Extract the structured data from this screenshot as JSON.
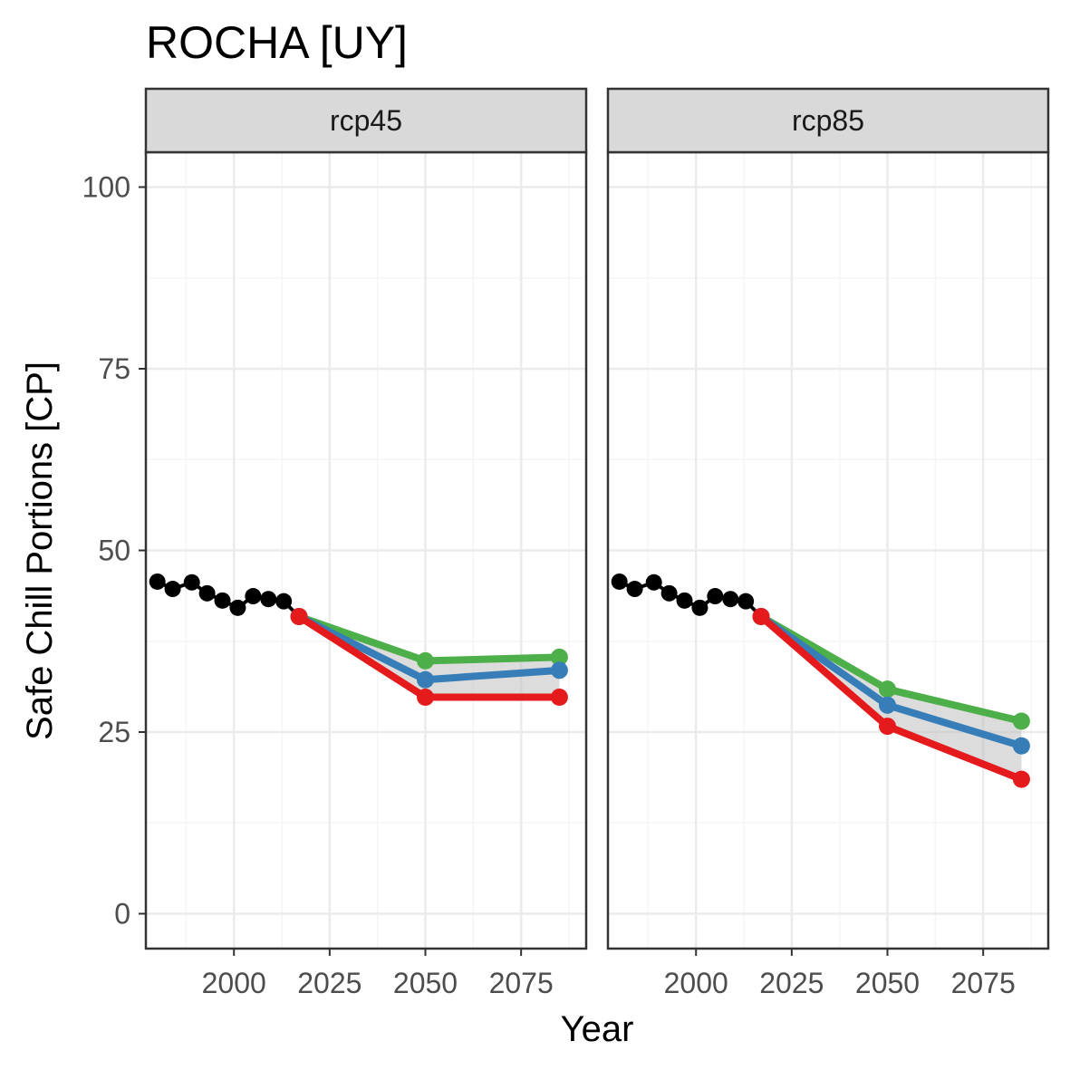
{
  "chart_data": {
    "type": "line",
    "title": "ROCHA [UY]",
    "xlabel": "Year",
    "ylabel": "Safe Chill Portions [CP]",
    "xlim": [
      1977,
      2092
    ],
    "ylim": [
      -4.8,
      104.8
    ],
    "x_ticks": [
      2000,
      2025,
      2050,
      2075
    ],
    "y_ticks": [
      0,
      25,
      50,
      75,
      100
    ],
    "grid": true,
    "legend": "none",
    "colors": {
      "historic": "#000000",
      "high": "#4daf4a",
      "mid": "#377eb8",
      "low": "#e41a1c",
      "ribbon": "#bfbfbf",
      "strip_fill": "#d9d9d9",
      "panel_border": "#333333",
      "grid_major": "#ebebeb",
      "grid_minor": "#f5f5f5"
    },
    "panels": [
      {
        "label": "rcp45",
        "historic": {
          "x": [
            1980,
            1984,
            1989,
            1993,
            1997,
            2001,
            2005,
            2009,
            2013,
            2017
          ],
          "y": [
            45.7,
            44.7,
            45.6,
            44.1,
            43.1,
            42.1,
            43.7,
            43.3,
            43.0,
            40.9
          ]
        },
        "series": [
          {
            "x": [
              2017,
              2050,
              2085
            ],
            "y": [
              40.9,
              34.8,
              35.3
            ]
          },
          {
            "x": [
              2017,
              2050,
              2085
            ],
            "y": [
              40.9,
              32.2,
              33.5
            ]
          },
          {
            "x": [
              2017,
              2050,
              2085
            ],
            "y": [
              40.9,
              29.8,
              29.8
            ]
          }
        ]
      },
      {
        "label": "rcp85",
        "historic": {
          "x": [
            1980,
            1984,
            1989,
            1993,
            1997,
            2001,
            2005,
            2009,
            2013,
            2017
          ],
          "y": [
            45.7,
            44.7,
            45.6,
            44.1,
            43.1,
            42.1,
            43.7,
            43.3,
            43.0,
            40.9
          ]
        },
        "series": [
          {
            "x": [
              2017,
              2050,
              2085
            ],
            "y": [
              40.9,
              30.9,
              26.5
            ]
          },
          {
            "x": [
              2017,
              2050,
              2085
            ],
            "y": [
              40.9,
              28.7,
              23.1
            ]
          },
          {
            "x": [
              2017,
              2050,
              2085
            ],
            "y": [
              40.9,
              25.8,
              18.5
            ]
          }
        ]
      }
    ]
  }
}
